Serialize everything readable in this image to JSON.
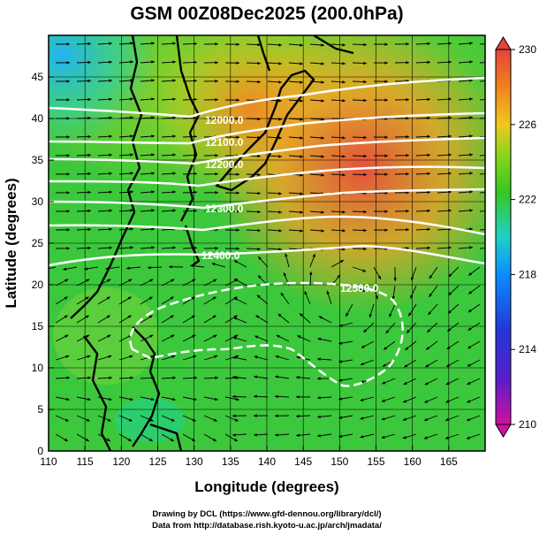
{
  "title": "GSM 00Z08Dec2025 (200.0hPa)",
  "x_axis": {
    "label": "Longitude (degrees)",
    "ticks": [
      "110",
      "115",
      "120",
      "125",
      "130",
      "135",
      "140",
      "145",
      "150",
      "155",
      "160",
      "165"
    ],
    "range": [
      110,
      170
    ]
  },
  "y_axis": {
    "label": "Latitude  (degrees)",
    "ticks": [
      "0",
      "5",
      "10",
      "15",
      "20",
      "25",
      "30",
      "35",
      "40",
      "45"
    ],
    "range": [
      0,
      50
    ]
  },
  "colorbar": {
    "ticks": [
      "210",
      "214",
      "218",
      "222",
      "226",
      "230"
    ],
    "range": [
      210,
      230
    ],
    "colors": [
      "#d1109e",
      "#3b1fbf",
      "#0a8cff",
      "#26d3b8",
      "#34c81e",
      "#7fd21e",
      "#e6c81e",
      "#f08a1e",
      "#e0483a"
    ]
  },
  "contour_labels": [
    {
      "text": "12000.0"
    },
    {
      "text": "12100.0"
    },
    {
      "text": "12200.0"
    },
    {
      "text": "12300.0"
    },
    {
      "text": "12400.0"
    },
    {
      "text": "12500.0"
    }
  ],
  "credits": {
    "line1": "Drawing by DCL (https://www.gfd-dennou.org/library/dcl/)",
    "line2": "Data from http://database.rish.kyoto-u.ac.jp/arch/jmadata/"
  },
  "colors": {
    "land": "#000000",
    "contour": "#ffffff",
    "background_field": "#3cc83c"
  }
}
